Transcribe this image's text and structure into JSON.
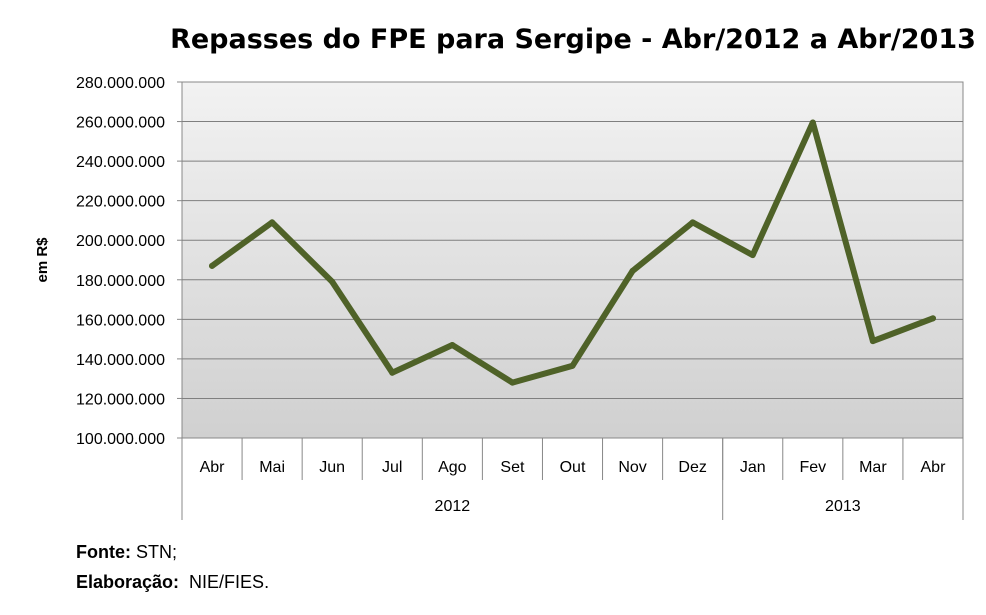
{
  "chart_data": {
    "type": "line",
    "title": "Repasses do FPE para Sergipe - Abr/2012 a Abr/2013",
    "ylabel": "em R$",
    "ylim": [
      100000000,
      280000000
    ],
    "y_ticks": [
      "100.000.000",
      "120.000.000",
      "140.000.000",
      "160.000.000",
      "180.000.000",
      "200.000.000",
      "220.000.000",
      "240.000.000",
      "260.000.000",
      "280.000.000"
    ],
    "categories": [
      "Abr",
      "Mai",
      "Jun",
      "Jul",
      "Ago",
      "Set",
      "Out",
      "Nov",
      "Dez",
      "Jan",
      "Fev",
      "Mar",
      "Abr"
    ],
    "year_groups": [
      {
        "label": "2012",
        "count": 9
      },
      {
        "label": "2013",
        "count": 4
      }
    ],
    "values": [
      187000000,
      209000000,
      179000000,
      133000000,
      147000000,
      128000000,
      136500000,
      184500000,
      209000000,
      192500000,
      259500000,
      149000000,
      160500000
    ],
    "line_color": "#4f6228",
    "grid": true,
    "plot_background": [
      "#ffffff",
      "#d9d9d9"
    ]
  },
  "source": {
    "fonte_label": "Fonte:",
    "fonte_value": " STN;",
    "elaboracao_label": "Elaboração:",
    "elaboracao_value": "  NIE/FIES."
  }
}
